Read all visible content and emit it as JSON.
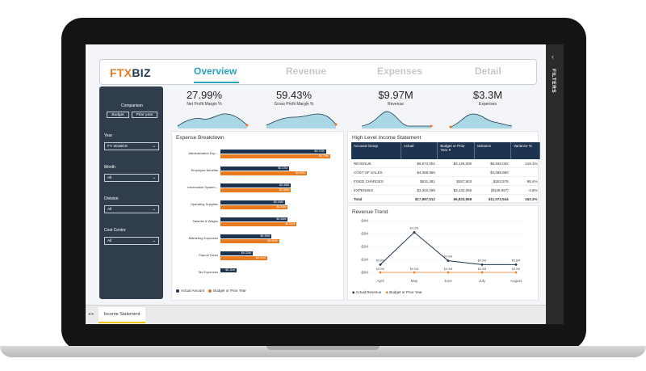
{
  "app": {
    "logo_part1": "FTX",
    "logo_part2": "BIZ"
  },
  "nav": {
    "tabs": [
      "Overview",
      "Revenue",
      "Expenses",
      "Detail"
    ],
    "active": "Overview"
  },
  "sidebar": {
    "comparison_label": "Comparison",
    "comparison_options": [
      "Budget",
      "Prior year"
    ],
    "year_label": "Year",
    "year_value": "FY 2018/19",
    "month_label": "Month",
    "month_value": "All",
    "division_label": "Division",
    "division_value": "All",
    "cost_centre_label": "Cost Centre",
    "cost_centre_value": "All"
  },
  "kpis": [
    {
      "value": "27.99%",
      "label": "Net Profit Margin %"
    },
    {
      "value": "59.43%",
      "label": "Gross Profit Margin %"
    },
    {
      "value": "$9.97M",
      "label": "Revenue"
    },
    {
      "value": "$3.3M",
      "label": "Expenses"
    }
  ],
  "expense_breakdown": {
    "title": "Expense Breakdown",
    "legend": [
      "Actual Amount",
      "Budget or Prior Year"
    ]
  },
  "chart_data": [
    {
      "type": "bar",
      "title": "Expense Breakdown",
      "categories": [
        "Administration Exp...",
        "Employee Benefits",
        "Information System...",
        "Operating Supplies",
        "Salaries & Wages",
        "Marketing Expenses",
        "Payroll Taxes",
        "Tax Expenses"
      ],
      "series": [
        {
          "name": "Actual Amount",
          "values": [
            0.72,
            0.47,
            0.48,
            0.44,
            0.46,
            0.35,
            0.22,
            0.11
          ],
          "labels": [
            "$0.72M",
            "$0.47M",
            "$0.48M",
            "$0.44M",
            "$0.46M",
            "$0.35M",
            "$0.22M",
            "$0.11M"
          ]
        },
        {
          "name": "Budget or Prior Year",
          "values": [
            0.75,
            0.59,
            0.48,
            0.46,
            0.52,
            0.4,
            0.32,
            null
          ],
          "labels": [
            "$0.75M",
            "$0.59M",
            "$0.48M",
            "$0.46M",
            "$0.52M",
            "$0.40M",
            "$0.32M",
            ""
          ]
        }
      ],
      "xlim": [
        0,
        0.8
      ]
    },
    {
      "type": "line",
      "title": "Revenue Trend",
      "categories": [
        "April",
        "May",
        "June",
        "July",
        "August"
      ],
      "series": [
        {
          "name": "Actual Revenue",
          "values": [
            0.6,
            3.1,
            0.9,
            0.6,
            0.6
          ],
          "labels": [
            "$0.6M",
            "$3.1M",
            "$0.9M",
            "$0.6M",
            "$0.6M"
          ]
        },
        {
          "name": "Budget or Prior Year",
          "values": [
            0.0,
            0.0,
            0.0,
            0.0,
            0.0
          ],
          "labels": [
            "$0.0M",
            "$0.0M",
            "$0.0M",
            "$0.0M",
            "$0.0M"
          ]
        }
      ],
      "yticks": [
        "$0M",
        "$1M",
        "$2M",
        "$3M",
        "$4M"
      ],
      "ylim": [
        0,
        4
      ]
    }
  ],
  "income_statement": {
    "title": "High Level Income Statement",
    "columns": [
      "Account Group",
      "Actual",
      "Budget or Prior Year",
      "Variance",
      "Variance %"
    ],
    "rows": [
      [
        "REVENUE",
        "$9,973,002",
        "$3,125,000",
        "$6,848,002",
        "219.1%"
      ],
      [
        "COST OF SALES",
        "$4,089,960",
        "",
        "$4,089,960",
        ""
      ],
      [
        "FIXED CHARGES",
        "$531,481",
        "$267,903",
        "$263,578",
        "98.4%"
      ],
      [
        "EXPENSES",
        "$3,303,069",
        "$3,432,065",
        "($128,997)",
        "-3.8%"
      ]
    ],
    "total": [
      "Total",
      "$17,897,512",
      "$6,824,968",
      "$11,072,544",
      "162.2%"
    ]
  },
  "revenue_trend": {
    "title": "Revenue Trend",
    "legend": [
      "Actual Revenue",
      "Budget or Prior Year"
    ]
  },
  "filters_pane": {
    "label": "FILTERS"
  },
  "page_tab": {
    "label": "Income Statement"
  },
  "colors": {
    "navy": "#1e3350",
    "orange": "#ea7a1e",
    "teal": "#2aa3bd",
    "sidebar": "#2f3d4d"
  }
}
